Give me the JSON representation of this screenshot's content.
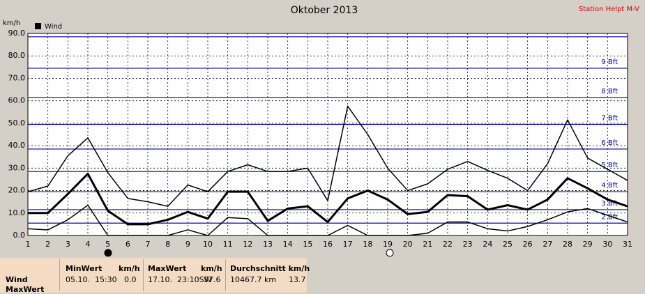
{
  "chart_data": {
    "type": "line",
    "title": "Oktober 2013",
    "station": "Station Helpt M-V",
    "y_label": "km/h",
    "legend": "Wind",
    "x": [
      1,
      2,
      3,
      4,
      5,
      6,
      7,
      8,
      9,
      10,
      11,
      12,
      13,
      14,
      15,
      16,
      17,
      18,
      19,
      20,
      21,
      22,
      23,
      24,
      25,
      26,
      27,
      28,
      29,
      30,
      31
    ],
    "xlim": [
      1,
      31
    ],
    "xticks": [
      1,
      2,
      3,
      4,
      5,
      6,
      7,
      8,
      9,
      10,
      11,
      12,
      13,
      14,
      15,
      16,
      17,
      18,
      19,
      20,
      21,
      22,
      23,
      24,
      25,
      26,
      27,
      28,
      29,
      30,
      31
    ],
    "ylim": [
      0,
      90
    ],
    "yticks": [
      {
        "value": 0,
        "label": "0.0"
      },
      {
        "value": 10,
        "label": "10.0"
      },
      {
        "value": 20,
        "label": "20.0"
      },
      {
        "value": 30,
        "label": "30.0"
      },
      {
        "value": 40,
        "label": "40.0"
      },
      {
        "value": 50,
        "label": "50.0"
      },
      {
        "value": 60,
        "label": "60.0"
      },
      {
        "value": 70,
        "label": "70.0"
      },
      {
        "value": 80,
        "label": "80.0"
      },
      {
        "value": 90,
        "label": "90.0"
      }
    ],
    "grid": true,
    "bft_lines": [
      5.5,
      11.5,
      19.5,
      28.5,
      38.5,
      49.5,
      61.5,
      74.5,
      88.5
    ],
    "bft_labels": [
      "2 Bft",
      "3 Bft",
      "4 Bft",
      "5 Bft",
      "6 Bft",
      "7 Bft",
      "8 Bft",
      "9 Bft",
      null
    ],
    "bft_color": "#0000a0",
    "series": [
      {
        "color": "#000000",
        "width": 1.5,
        "values": [
          19.5,
          22,
          35.5,
          43.5,
          28,
          16.5,
          15,
          13,
          22.5,
          19.5,
          28.5,
          31.5,
          28.5,
          28.5,
          30,
          15.5,
          57.6,
          45,
          30,
          20,
          23,
          29.5,
          33,
          29,
          25.5,
          20,
          32,
          51.5,
          34.5,
          29.5,
          24.5
        ]
      },
      {
        "color": "#000000",
        "width": 3,
        "values": [
          10,
          10,
          18.5,
          27.5,
          11,
          5,
          5,
          7,
          10.5,
          7.5,
          19.5,
          19.5,
          6.5,
          12,
          13,
          6,
          16.5,
          20,
          16,
          9.5,
          10.5,
          18,
          17.5,
          11.5,
          13.5,
          11.5,
          16,
          25.5,
          21,
          16,
          13
        ]
      },
      {
        "color": "#000000",
        "width": 1.5,
        "values": [
          3,
          2.5,
          7,
          13.5,
          0,
          0,
          0,
          0,
          2.5,
          0,
          8,
          7.5,
          0,
          0,
          0,
          0,
          4.5,
          0,
          0,
          0,
          1,
          6,
          6,
          3,
          2,
          4,
          7,
          10.5,
          12,
          9,
          6
        ]
      }
    ]
  },
  "table": {
    "row_labels": [
      "Wind",
      "MaxWert"
    ],
    "columns": [
      {
        "header": [
          "MinWert",
          "km/h"
        ],
        "row": [
          "05.10.  15:30",
          "0.0"
        ]
      },
      {
        "header": [
          "MaxWert",
          "km/h"
        ],
        "row": [
          "17.10.  23:10SW",
          "57.6"
        ]
      },
      {
        "header": [
          "Durchschnitt km/h"
        ],
        "row": [
          "10467.7 km",
          "13.7"
        ]
      }
    ]
  }
}
